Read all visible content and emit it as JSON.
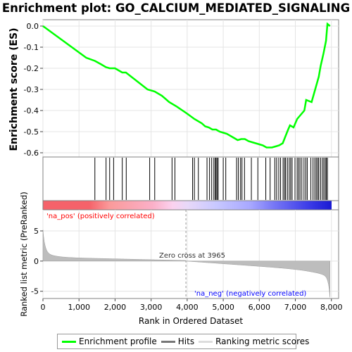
{
  "chart_data": {
    "type": "line",
    "title": "Enrichment plot: GO_CALCIUM_MEDIATED_SIGNALING",
    "xlabel": "Rank in Ordered Dataset",
    "es_ylabel": "Enrichment score (ES)",
    "rank_ylabel": "Ranked list metric (PreRanked)",
    "xlim": [
      0,
      8200
    ],
    "es_ylim": [
      -0.62,
      0.03
    ],
    "rank_ylim": [
      -6.2,
      8.5
    ],
    "x_ticks": [
      0,
      1000,
      2000,
      3000,
      4000,
      5000,
      6000,
      7000,
      8000
    ],
    "x_tick_labels": [
      "0",
      "1,000",
      "2,000",
      "3,000",
      "4,000",
      "5,000",
      "6,000",
      "7,000",
      "8,000"
    ],
    "es_ticks": [
      0.0,
      -0.1,
      -0.2,
      -0.3,
      -0.4,
      -0.5,
      -0.6
    ],
    "es_tick_labels": [
      "0.0",
      "-0.1",
      "-0.2",
      "-0.3",
      "-0.4",
      "-0.5",
      "-0.6"
    ],
    "rank_ticks": [
      5,
      0,
      -5
    ],
    "rank_tick_labels": [
      "5",
      "0",
      "-5"
    ],
    "zero_cross": 3965,
    "zero_cross_label": "Zero cross at 3965",
    "pos_label": "'na_pos' (positively correlated)",
    "neg_label": "'na_neg' (negatively correlated)",
    "n_genes": 7960,
    "es_curve": [
      [
        0,
        0.0
      ],
      [
        400,
        -0.05
      ],
      [
        800,
        -0.1
      ],
      [
        1200,
        -0.15
      ],
      [
        1440,
        -0.165
      ],
      [
        1600,
        -0.18
      ],
      [
        1750,
        -0.195
      ],
      [
        1850,
        -0.2
      ],
      [
        2000,
        -0.2
      ],
      [
        2150,
        -0.215
      ],
      [
        2200,
        -0.22
      ],
      [
        2300,
        -0.22
      ],
      [
        2600,
        -0.26
      ],
      [
        2900,
        -0.3
      ],
      [
        3100,
        -0.31
      ],
      [
        3300,
        -0.33
      ],
      [
        3500,
        -0.36
      ],
      [
        3700,
        -0.38
      ],
      [
        4000,
        -0.415
      ],
      [
        4200,
        -0.44
      ],
      [
        4400,
        -0.46
      ],
      [
        4500,
        -0.475
      ],
      [
        4600,
        -0.48
      ],
      [
        4700,
        -0.49
      ],
      [
        4800,
        -0.49
      ],
      [
        4900,
        -0.5
      ],
      [
        5000,
        -0.505
      ],
      [
        5100,
        -0.51
      ],
      [
        5300,
        -0.53
      ],
      [
        5400,
        -0.54
      ],
      [
        5500,
        -0.535
      ],
      [
        5600,
        -0.535
      ],
      [
        5700,
        -0.545
      ],
      [
        5800,
        -0.55
      ],
      [
        6000,
        -0.56
      ],
      [
        6100,
        -0.565
      ],
      [
        6200,
        -0.575
      ],
      [
        6350,
        -0.575
      ],
      [
        6450,
        -0.57
      ],
      [
        6550,
        -0.565
      ],
      [
        6650,
        -0.555
      ],
      [
        6730,
        -0.52
      ],
      [
        6800,
        -0.49
      ],
      [
        6850,
        -0.47
      ],
      [
        6950,
        -0.48
      ],
      [
        7050,
        -0.44
      ],
      [
        7150,
        -0.42
      ],
      [
        7250,
        -0.4
      ],
      [
        7300,
        -0.35
      ],
      [
        7450,
        -0.36
      ],
      [
        7550,
        -0.3
      ],
      [
        7650,
        -0.24
      ],
      [
        7700,
        -0.19
      ],
      [
        7780,
        -0.13
      ],
      [
        7850,
        -0.07
      ],
      [
        7890,
        0.01
      ],
      [
        7960,
        0.0
      ]
    ],
    "hits": [
      1440,
      1750,
      1850,
      1960,
      2200,
      2310,
      2960,
      3100,
      3580,
      3660,
      4150,
      4200,
      4310,
      4550,
      4620,
      4680,
      4740,
      4780,
      4800,
      4830,
      4860,
      5000,
      5070,
      5370,
      5420,
      5480,
      5520,
      5590,
      5780,
      5960,
      6180,
      6300,
      6430,
      6480,
      6540,
      6590,
      6660,
      6700,
      6730,
      6780,
      6830,
      6870,
      6910,
      6990,
      7050,
      7090,
      7130,
      7180,
      7240,
      7290,
      7330,
      7430,
      7490,
      7540,
      7580,
      7620,
      7650,
      7700,
      7750,
      7790,
      7830,
      7860,
      7890
    ]
  },
  "legend": {
    "enrichment": "Enrichment profile",
    "hits": "Hits",
    "ranking": "Ranking metric scores"
  },
  "colors": {
    "es_line": "#00ff00",
    "hit": "#000000",
    "metric_fill": "#bdbdbd",
    "pos_text": "#ff0000",
    "neg_text": "#0000ff"
  }
}
